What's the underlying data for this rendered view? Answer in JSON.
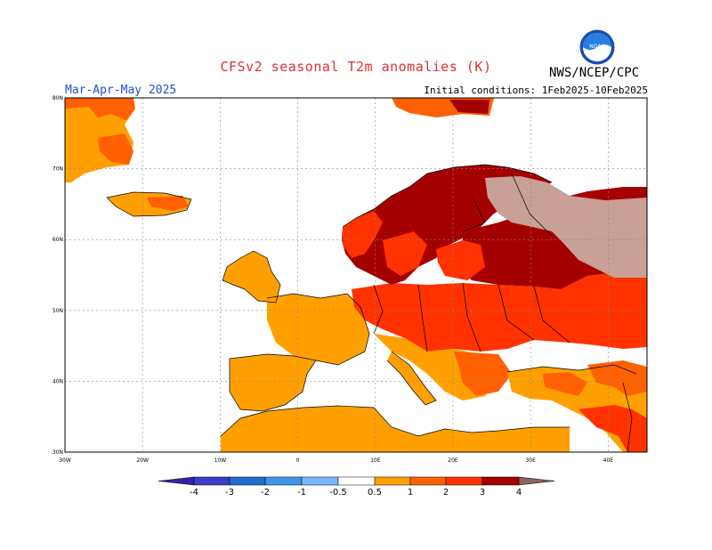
{
  "header": {
    "title": "CFSv2 seasonal T2m anomalies (K)",
    "period": "Mar-Apr-May 2025",
    "agency": "NWS/NCEP/CPC",
    "initial_conditions": "Initial conditions: 1Feb2025-10Feb2025",
    "logo_text": "NOAA"
  },
  "map": {
    "lat_labels": [
      "80N",
      "70N",
      "60N",
      "50N",
      "40N",
      "30N"
    ],
    "lon_labels": [
      "30W",
      "20W",
      "10W",
      "0",
      "10E",
      "20E",
      "30E",
      "40E"
    ],
    "extent": {
      "lon": [
        -30,
        45
      ],
      "lat": [
        30,
        80
      ]
    }
  },
  "colorbar": {
    "labels": [
      "-4",
      "-3",
      "-2",
      "-1",
      "-0.5",
      "0.5",
      "1",
      "2",
      "3",
      "4"
    ],
    "colors": [
      "#3a1ea8",
      "#3c3cc8",
      "#1e6ed2",
      "#3c96f0",
      "#78b9fa",
      "#ffffff",
      "#ffa000",
      "#ff6000",
      "#ff3200",
      "#a50000",
      "#c8a096",
      "#8c645a"
    ]
  }
}
